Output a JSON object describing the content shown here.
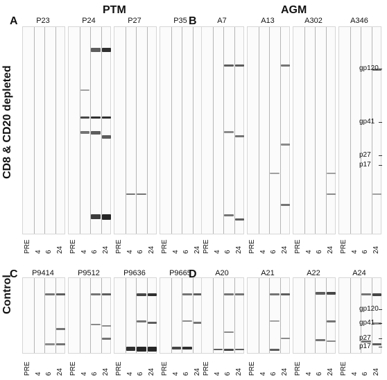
{
  "group_titles": {
    "ptm": "PTM",
    "agm": "AGM"
  },
  "row_labels": {
    "depleted": "CD8 & CD20 depleted",
    "control": "Control"
  },
  "panel_letters": [
    "A",
    "B",
    "C",
    "D"
  ],
  "timepoints": [
    "PRE",
    "4",
    "6",
    "24"
  ],
  "markers": [
    "gp120",
    "gp41",
    "p27",
    "p17"
  ],
  "panels": [
    {
      "letter": "A",
      "animals": [
        "P23",
        "P24",
        "P27",
        "P35"
      ]
    },
    {
      "letter": "B",
      "animals": [
        "A7",
        "A13",
        "A302",
        "A346"
      ]
    },
    {
      "letter": "C",
      "animals": [
        "P9414",
        "P9512",
        "P9636",
        "P9665"
      ]
    },
    {
      "letter": "D",
      "animals": [
        "A20",
        "A21",
        "A22",
        "A24"
      ]
    }
  ],
  "colors": {
    "band": "#1a1a1a",
    "strip_bg": "#fbfbfb",
    "strip_border": "#d6d6d6"
  }
}
